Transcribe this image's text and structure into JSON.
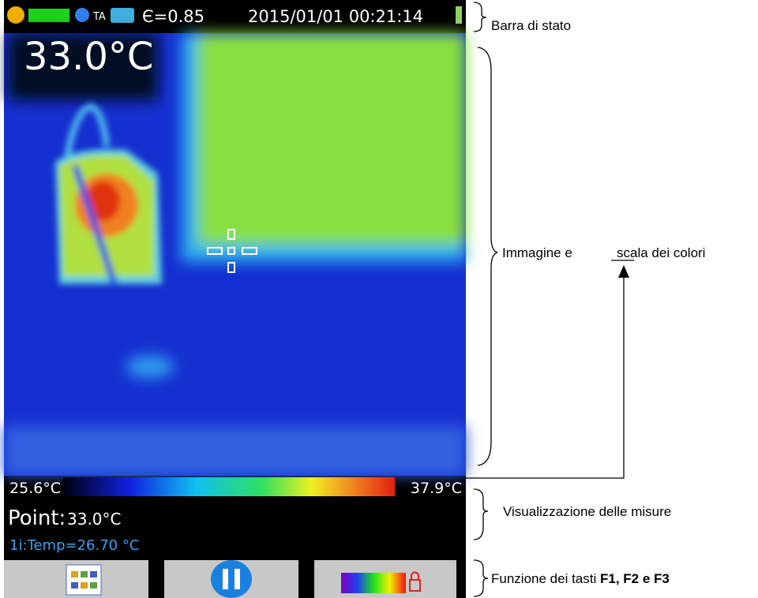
{
  "status_bar": {
    "emissivity": "Є=0.85",
    "datetime": "2015/01/01 00:21:14"
  },
  "image": {
    "spot_temperature": "33.0°C"
  },
  "color_scale": {
    "min": "25.6°C",
    "max": "37.9°C"
  },
  "measurements": {
    "point_label": "Point:",
    "point_value": "33.0°C",
    "marker": "1i:Temp=26.70 °C"
  },
  "annotations": {
    "status_bar": "Barra di stato",
    "image_prefix": "Immagine e",
    "image_link": "scala",
    "image_suffix": "dei colori",
    "measurements": "Visualizzazione delle misure",
    "keys_prefix": "Funzione dei tasti",
    "keys_bold": "F1, F2 e F3"
  }
}
